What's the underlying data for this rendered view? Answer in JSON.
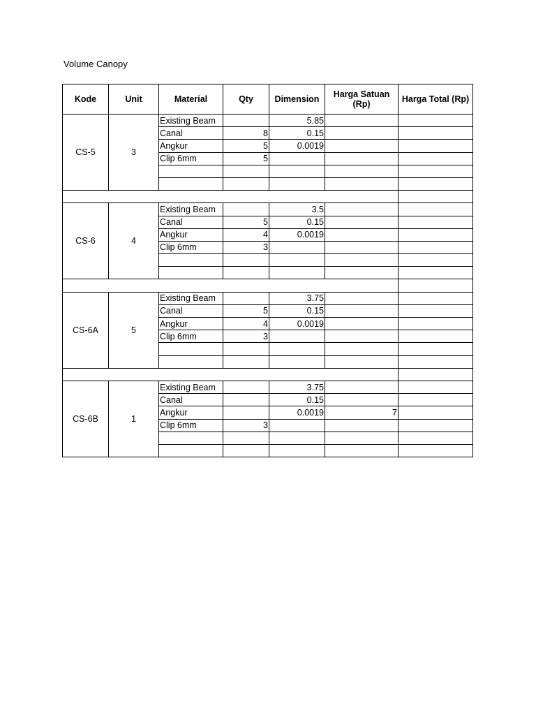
{
  "title": "Volume Canopy",
  "headers": [
    "Kode",
    "Unit",
    "Material",
    "Qty",
    "Dimension",
    "Harga Satuan (Rp)",
    "Harga Total (Rp)"
  ],
  "groups": [
    {
      "kode": "CS-5",
      "unit": "3",
      "rows": [
        {
          "material": "Existing Beam",
          "qty": "",
          "dimension": "5.85",
          "harga_satuan": "",
          "harga_total": ""
        },
        {
          "material": "Canal",
          "qty": "8",
          "dimension": "0.15",
          "harga_satuan": "",
          "harga_total": ""
        },
        {
          "material": "Angkur",
          "qty": "5",
          "dimension": "0.0019",
          "harga_satuan": "",
          "harga_total": ""
        },
        {
          "material": "Clip 6mm",
          "qty": "5",
          "dimension": "",
          "harga_satuan": "",
          "harga_total": ""
        },
        {
          "material": "",
          "qty": "",
          "dimension": "",
          "harga_satuan": "",
          "harga_total": ""
        },
        {
          "material": "",
          "qty": "",
          "dimension": "",
          "harga_satuan": "",
          "harga_total": ""
        }
      ]
    },
    {
      "kode": "CS-6",
      "unit": "4",
      "rows": [
        {
          "material": "Existing Beam",
          "qty": "",
          "dimension": "3.5",
          "harga_satuan": "",
          "harga_total": ""
        },
        {
          "material": "Canal",
          "qty": "5",
          "dimension": "0.15",
          "harga_satuan": "",
          "harga_total": ""
        },
        {
          "material": "Angkur",
          "qty": "4",
          "dimension": "0.0019",
          "harga_satuan": "",
          "harga_total": ""
        },
        {
          "material": "Clip 6mm",
          "qty": "3",
          "dimension": "",
          "harga_satuan": "",
          "harga_total": ""
        },
        {
          "material": "",
          "qty": "",
          "dimension": "",
          "harga_satuan": "",
          "harga_total": ""
        },
        {
          "material": "",
          "qty": "",
          "dimension": "",
          "harga_satuan": "",
          "harga_total": ""
        }
      ]
    },
    {
      "kode": "CS-6A",
      "unit": "5",
      "rows": [
        {
          "material": "Existing Beam",
          "qty": "",
          "dimension": "3.75",
          "harga_satuan": "",
          "harga_total": ""
        },
        {
          "material": "Canal",
          "qty": "5",
          "dimension": "0.15",
          "harga_satuan": "",
          "harga_total": ""
        },
        {
          "material": "Angkur",
          "qty": "4",
          "dimension": "0.0019",
          "harga_satuan": "",
          "harga_total": ""
        },
        {
          "material": "Clip 6mm",
          "qty": "3",
          "dimension": "",
          "harga_satuan": "",
          "harga_total": ""
        },
        {
          "material": "",
          "qty": "",
          "dimension": "",
          "harga_satuan": "",
          "harga_total": ""
        },
        {
          "material": "",
          "qty": "",
          "dimension": "",
          "harga_satuan": "",
          "harga_total": ""
        }
      ]
    },
    {
      "kode": "CS-6B",
      "unit": "1",
      "rows": [
        {
          "material": "Existing Beam",
          "qty": "",
          "dimension": "3.75",
          "harga_satuan": "",
          "harga_total": ""
        },
        {
          "material": "Canal",
          "qty": "",
          "dimension": "0.15",
          "harga_satuan": "",
          "harga_total": ""
        },
        {
          "material": "Angkur",
          "qty": "",
          "dimension": "0.0019",
          "harga_satuan": "7",
          "harga_total": ""
        },
        {
          "material": "Clip 6mm",
          "qty": "3",
          "dimension": "",
          "harga_satuan": "",
          "harga_total": ""
        },
        {
          "material": "",
          "qty": "",
          "dimension": "",
          "harga_satuan": "",
          "harga_total": ""
        },
        {
          "material": "",
          "qty": "",
          "dimension": "",
          "harga_satuan": "",
          "harga_total": ""
        }
      ]
    }
  ]
}
